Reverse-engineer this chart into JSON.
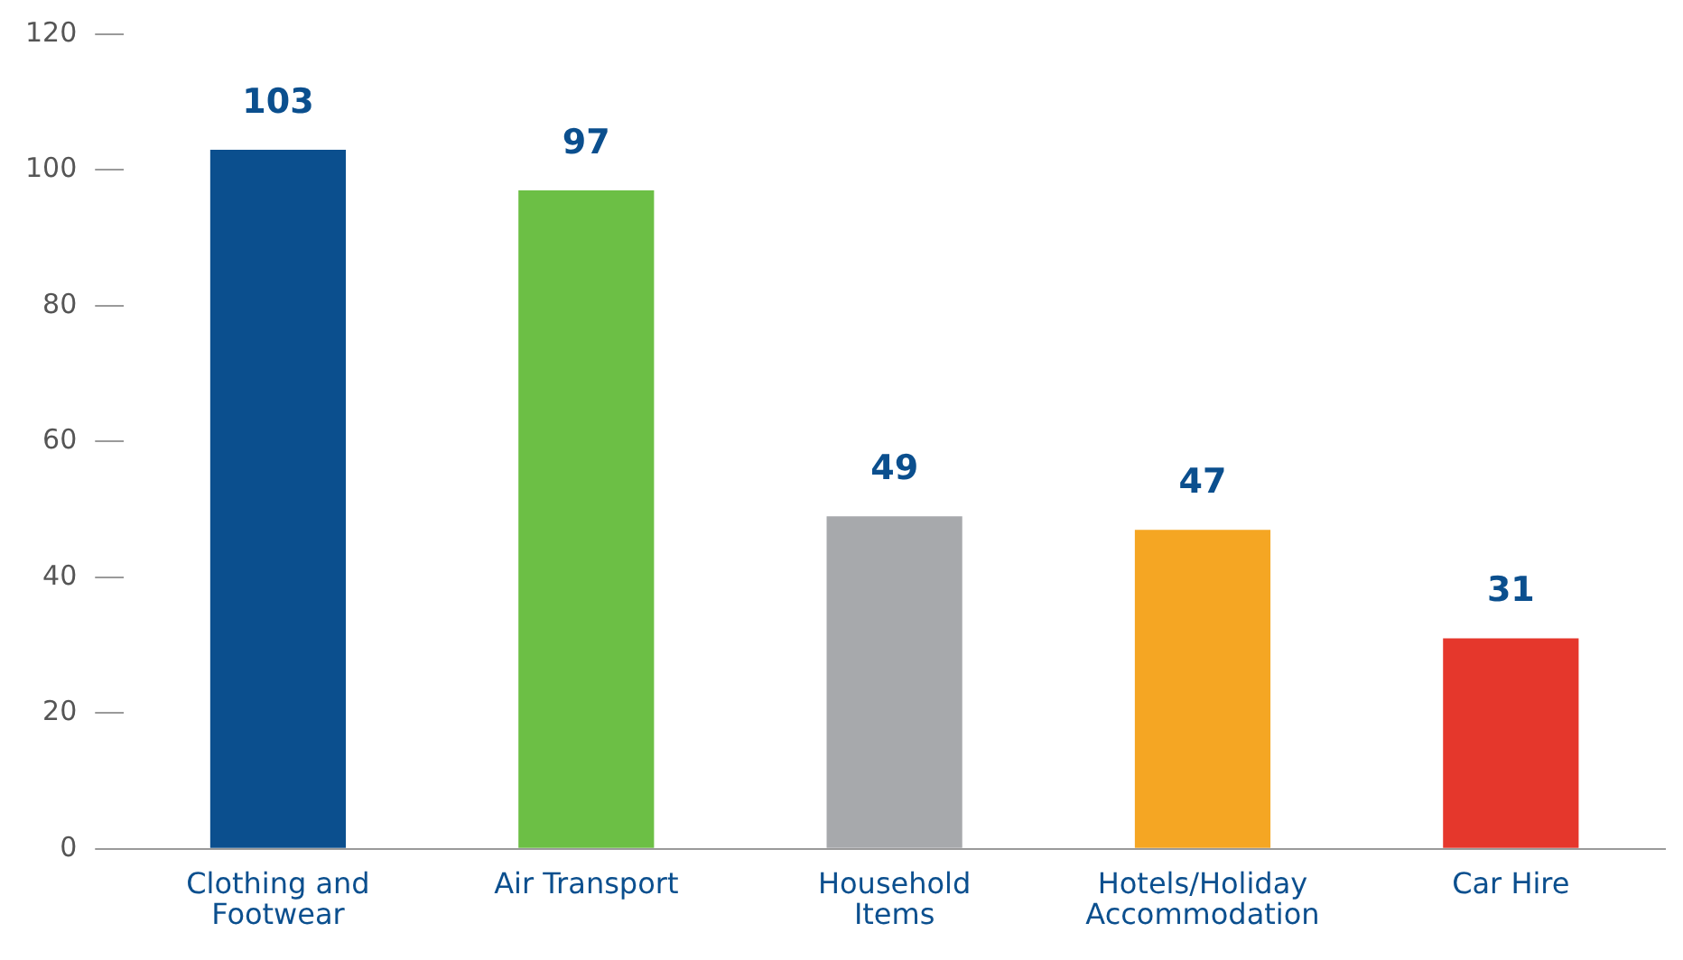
{
  "chart_data": {
    "type": "bar",
    "categories": [
      "Clothing and Footwear",
      "Air Transport",
      "Household Items",
      "Hotels/Holiday Accommodation",
      "Car Hire"
    ],
    "values": [
      103,
      97,
      49,
      47,
      31
    ],
    "colors": [
      "#0b4f8e",
      "#6cbf45",
      "#a7a9ac",
      "#f5a623",
      "#e5372c"
    ],
    "ylim": [
      0,
      120
    ],
    "yticks": [
      0,
      20,
      40,
      60,
      80,
      100,
      120
    ],
    "grid": false,
    "legend": false,
    "data_labels": true
  }
}
